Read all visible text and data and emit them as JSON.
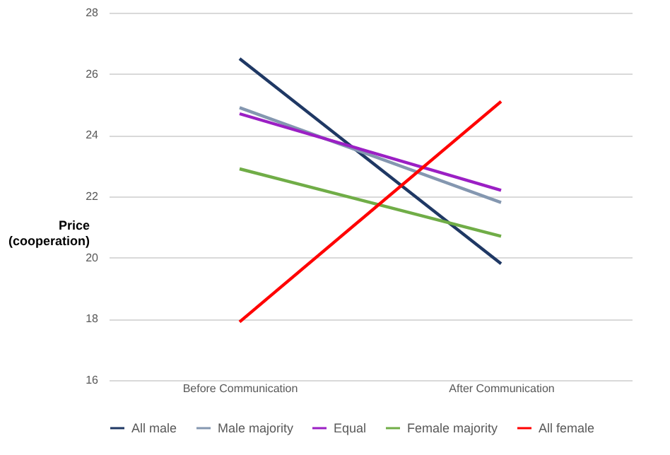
{
  "chart_data": {
    "type": "line",
    "ylabel": "Price\n(cooperation)",
    "categories": [
      "Before Communication",
      "After Communication"
    ],
    "series": [
      {
        "name": "All male",
        "color": "#1f3864",
        "values": [
          26.5,
          19.8
        ]
      },
      {
        "name": "Male majority",
        "color": "#8497b0",
        "values": [
          24.9,
          21.8
        ]
      },
      {
        "name": "Equal",
        "color": "#9b1fc4",
        "values": [
          24.7,
          22.2
        ]
      },
      {
        "name": "Female majority",
        "color": "#70ad47",
        "values": [
          22.9,
          20.7
        ]
      },
      {
        "name": "All female",
        "color": "#ff0000",
        "values": [
          17.9,
          25.1
        ]
      }
    ],
    "ylim": [
      16,
      28
    ],
    "yticks": [
      16,
      18,
      20,
      22,
      24,
      26,
      28
    ],
    "grid": "y",
    "legend": "bottom",
    "marker": "none",
    "line_style": "solid"
  }
}
